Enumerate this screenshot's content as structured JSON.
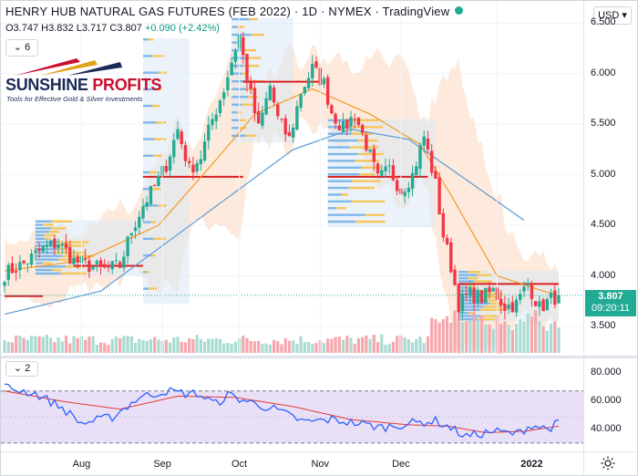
{
  "header": {
    "title": "HENRY HUB NATURAL GAS FUTURES (FEB 2022) · 1D · NYMEX · TradingView",
    "ohlc": {
      "o": "O3.747",
      "h": "H3.832",
      "l": "L3.717",
      "c": "C3.807",
      "chg": "+0.090 (+2.42%)"
    },
    "indicator_count": "6",
    "currency_button": "USD"
  },
  "logo": {
    "name_a": "SUNSHINE",
    "name_b": " PROFITS",
    "tagline": "Tools for Effective Gold & Silver Investments"
  },
  "last_price": {
    "price": "3.807",
    "countdown": "09:20:11"
  },
  "rsi_pane": {
    "indicator_count": "2",
    "ticks": [
      "80.000",
      "60.000",
      "40.000"
    ]
  },
  "colors": {
    "up": "#22ab94",
    "down": "#f23645",
    "ema20": "#f59a23",
    "sma50": "#5b9bd5",
    "bb_fill": "#fbd9bf",
    "vol_up": "#a8dbd2",
    "vol_down": "#f6a6ad",
    "vp_up": "#7fb7e8",
    "vp_down": "#f7c65a",
    "poc": "#d81e1e",
    "rsi": "#2962ff",
    "rsi_ma": "#e53935",
    "rsi_band": "#e9dff7"
  },
  "chart_data": {
    "type": "candlestick",
    "y_ticks": [
      "6.500",
      "6.000",
      "5.500",
      "5.000",
      "4.500",
      "4.000",
      "3.500"
    ],
    "ylim": [
      3.22,
      6.72
    ],
    "x_labels": [
      "Aug",
      "Sep",
      "Oct",
      "Nov",
      "Dec",
      "2022"
    ],
    "anchor_closes": [
      [
        0,
        4.02
      ],
      [
        5,
        4.12
      ],
      [
        10,
        4.27
      ],
      [
        14,
        4.33
      ],
      [
        18,
        4.15
      ],
      [
        22,
        4.1
      ],
      [
        26,
        4.06
      ],
      [
        30,
        4.1
      ],
      [
        33,
        4.45
      ],
      [
        36,
        4.7
      ],
      [
        39,
        4.88
      ],
      [
        42,
        5.1
      ],
      [
        45,
        5.45
      ],
      [
        48,
        5.05
      ],
      [
        51,
        5.18
      ],
      [
        54,
        5.55
      ],
      [
        57,
        5.85
      ],
      [
        59,
        6.12
      ],
      [
        61,
        6.38
      ],
      [
        63,
        5.95
      ],
      [
        66,
        5.45
      ],
      [
        69,
        5.88
      ],
      [
        71,
        5.55
      ],
      [
        74,
        5.35
      ],
      [
        77,
        5.82
      ],
      [
        80,
        6.05
      ],
      [
        83,
        5.9
      ],
      [
        85,
        5.62
      ],
      [
        88,
        5.45
      ],
      [
        91,
        5.6
      ],
      [
        94,
        5.3
      ],
      [
        97,
        4.95
      ],
      [
        100,
        5.05
      ],
      [
        103,
        4.85
      ],
      [
        106,
        5.0
      ],
      [
        109,
        5.38
      ],
      [
        112,
        4.9
      ],
      [
        114,
        4.4
      ],
      [
        116,
        4.1
      ],
      [
        118,
        3.72
      ],
      [
        121,
        3.82
      ],
      [
        124,
        3.78
      ],
      [
        127,
        3.85
      ],
      [
        130,
        3.7
      ],
      [
        133,
        3.72
      ],
      [
        136,
        3.93
      ],
      [
        139,
        3.68
      ],
      [
        142,
        3.77
      ],
      [
        144,
        3.807
      ]
    ],
    "ema20_pts": [
      [
        0,
        4.05
      ],
      [
        20,
        4.15
      ],
      [
        40,
        4.5
      ],
      [
        55,
        5.15
      ],
      [
        65,
        5.6
      ],
      [
        80,
        5.85
      ],
      [
        95,
        5.6
      ],
      [
        108,
        5.3
      ],
      [
        116,
        4.8
      ],
      [
        128,
        4.0
      ],
      [
        144,
        3.8
      ]
    ],
    "sma50_pts": [
      [
        0,
        3.62
      ],
      [
        25,
        3.85
      ],
      [
        50,
        4.55
      ],
      [
        75,
        5.25
      ],
      [
        90,
        5.45
      ],
      [
        105,
        5.35
      ],
      [
        120,
        4.95
      ],
      [
        135,
        4.55
      ]
    ],
    "volume_hint": "per-day volume bars scaled 0–1",
    "rsi": {
      "ylim": [
        25,
        95
      ],
      "band": [
        30,
        70
      ],
      "pts": [
        [
          0,
          73
        ],
        [
          8,
          68
        ],
        [
          15,
          57
        ],
        [
          20,
          45
        ],
        [
          28,
          50
        ],
        [
          35,
          65
        ],
        [
          42,
          70
        ],
        [
          47,
          68
        ],
        [
          50,
          68
        ],
        [
          55,
          60
        ],
        [
          58,
          67
        ],
        [
          62,
          63
        ],
        [
          70,
          56
        ],
        [
          78,
          46
        ],
        [
          85,
          48
        ],
        [
          92,
          45
        ],
        [
          98,
          42
        ],
        [
          105,
          45
        ],
        [
          112,
          47
        ],
        [
          115,
          43
        ],
        [
          120,
          35
        ],
        [
          127,
          39
        ],
        [
          133,
          37
        ],
        [
          137,
          44
        ],
        [
          141,
          41
        ],
        [
          144,
          45
        ]
      ],
      "ma_pts": [
        [
          0,
          70
        ],
        [
          15,
          62
        ],
        [
          30,
          56
        ],
        [
          45,
          66
        ],
        [
          60,
          65
        ],
        [
          75,
          58
        ],
        [
          90,
          48
        ],
        [
          105,
          44
        ],
        [
          115,
          43
        ],
        [
          125,
          38
        ],
        [
          135,
          39
        ],
        [
          144,
          43
        ]
      ]
    }
  }
}
